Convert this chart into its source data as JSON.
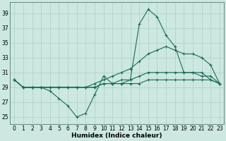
{
  "xlabel": "Humidex (Indice chaleur)",
  "bg_color": "#cce8e0",
  "grid_color": "#aacfc8",
  "line_color": "#1a6b5a",
  "xlim": [
    -0.5,
    23.5
  ],
  "ylim": [
    24.0,
    40.5
  ],
  "yticks": [
    25,
    27,
    29,
    31,
    33,
    35,
    37,
    39
  ],
  "xticks": [
    0,
    1,
    2,
    3,
    4,
    5,
    6,
    7,
    8,
    9,
    10,
    11,
    12,
    13,
    14,
    15,
    16,
    17,
    18,
    19,
    20,
    21,
    22,
    23
  ],
  "tick_fontsize": 5.5,
  "xlabel_fontsize": 6.5,
  "series": [
    [
      30.0,
      29.0,
      29.0,
      29.0,
      28.5,
      27.5,
      26.5,
      25.0,
      25.5,
      28.0,
      30.5,
      29.5,
      29.5,
      30.0,
      37.5,
      39.5,
      38.5,
      36.0,
      34.5,
      31.0,
      31.0,
      31.0,
      30.0,
      29.5
    ],
    [
      30.0,
      29.0,
      29.0,
      29.0,
      29.0,
      29.0,
      29.0,
      29.0,
      29.0,
      29.5,
      30.0,
      30.5,
      31.0,
      31.5,
      32.5,
      33.5,
      34.0,
      34.5,
      34.0,
      33.5,
      33.5,
      33.0,
      32.0,
      29.5
    ],
    [
      30.0,
      29.0,
      29.0,
      29.0,
      29.0,
      29.0,
      29.0,
      29.0,
      29.0,
      29.0,
      29.5,
      29.5,
      30.0,
      30.0,
      30.5,
      31.0,
      31.0,
      31.0,
      31.0,
      31.0,
      31.0,
      30.5,
      30.5,
      29.5
    ],
    [
      30.0,
      29.0,
      29.0,
      29.0,
      29.0,
      29.0,
      29.0,
      29.0,
      29.0,
      29.0,
      29.5,
      29.5,
      29.5,
      29.5,
      29.5,
      30.0,
      30.0,
      30.0,
      30.0,
      30.0,
      30.0,
      30.0,
      30.0,
      29.5
    ]
  ]
}
